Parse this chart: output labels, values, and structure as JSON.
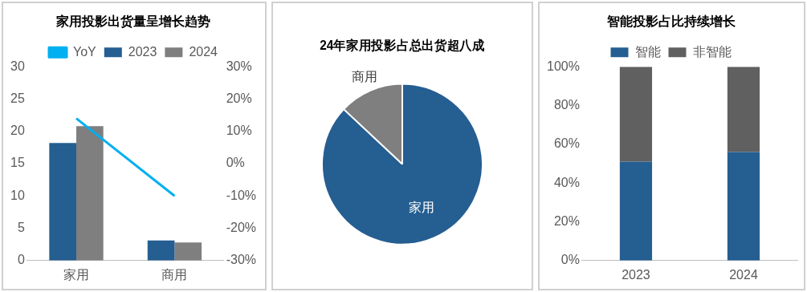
{
  "chart_data": [
    {
      "type": "bar",
      "title": "家用投影出货量呈增长趋势",
      "categories": [
        "家用",
        "商用"
      ],
      "series": [
        {
          "name": "2023",
          "color": "#255e91",
          "values": [
            18.2,
            3.1
          ]
        },
        {
          "name": "2024",
          "color": "#7f7f7f",
          "values": [
            20.8,
            2.8
          ]
        },
        {
          "name": "YoY",
          "type": "line",
          "axis": "y2",
          "color": "#00b0f0",
          "values": [
            14,
            -10
          ]
        }
      ],
      "ylim": [
        0,
        30
      ],
      "yticks": [
        0,
        5,
        10,
        15,
        20,
        25,
        30
      ],
      "y2lim": [
        -30,
        30
      ],
      "y2ticks": [
        {
          "value": -30,
          "label": "-30%"
        },
        {
          "value": -20,
          "label": "-20%"
        },
        {
          "value": -10,
          "label": "-10%"
        },
        {
          "value": 0,
          "label": "0%"
        },
        {
          "value": 10,
          "label": "10%"
        },
        {
          "value": 20,
          "label": "20%"
        },
        {
          "value": 30,
          "label": "30%"
        }
      ],
      "legend": "top",
      "marker": "none",
      "grid": false
    },
    {
      "type": "pie",
      "title": "24年家用投影占总出货超八成",
      "categories": [
        "家用",
        "商用"
      ],
      "values": [
        87,
        13
      ],
      "colors": [
        "#255e91",
        "#7f7f7f"
      ],
      "legend": false
    },
    {
      "type": "bar",
      "stacked": true,
      "title": "智能投影占比持续增长",
      "categories": [
        "2023",
        "2024"
      ],
      "series": [
        {
          "name": "智能",
          "color": "#255e91",
          "values": [
            51,
            56
          ]
        },
        {
          "name": "非智能",
          "color": "#606060",
          "values": [
            49,
            44
          ]
        }
      ],
      "ylim": [
        0,
        100
      ],
      "yticks": [
        {
          "value": 0,
          "label": "0%"
        },
        {
          "value": 20,
          "label": "20%"
        },
        {
          "value": 40,
          "label": "40%"
        },
        {
          "value": 60,
          "label": "60%"
        },
        {
          "value": 80,
          "label": "80%"
        },
        {
          "value": 100,
          "label": "100%"
        }
      ],
      "legend": "top",
      "grid": false
    }
  ]
}
